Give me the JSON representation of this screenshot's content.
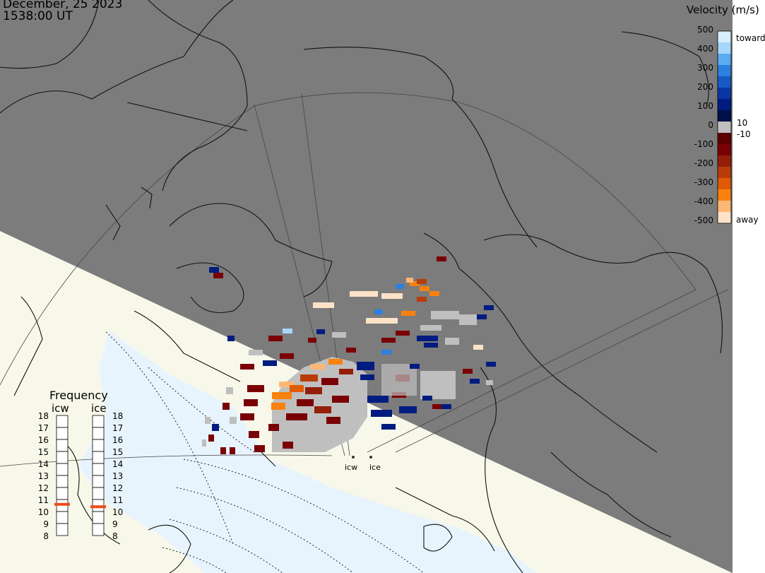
{
  "header": {
    "date": "December, 25 2023",
    "time": "1538:00 UT"
  },
  "legend": {
    "title": "Velocity (m/s)",
    "tick_labels": [
      "500",
      "400",
      "300",
      "200",
      "100",
      "0",
      "-100",
      "-200",
      "-300",
      "-400",
      "-500"
    ],
    "threshold_labels": [
      "10",
      "-10"
    ],
    "end_labels": {
      "toward": "toward",
      "away": "away"
    },
    "colors": [
      "#fde2c7",
      "#fdb774",
      "#f9810e",
      "#e05a06",
      "#b83c0a",
      "#951e0b",
      "#7a0005",
      "#5c0000",
      "#bfbfbf",
      "#000f4a",
      "#001c80",
      "#0a36a6",
      "#1859c5",
      "#2d7fe0",
      "#5aabf0",
      "#a6d6fa",
      "#d7eefe"
    ]
  },
  "frequency": {
    "title": "Frequency",
    "radars": [
      {
        "name": "icw",
        "value_mhz": 10.6
      },
      {
        "name": "ice",
        "value_mhz": 10.4
      }
    ],
    "scale_labels": [
      "18",
      "17",
      "16",
      "15",
      "14",
      "13",
      "12",
      "11",
      "10",
      "9",
      "8"
    ],
    "marker_color": "#ee4c1c"
  },
  "sites": [
    {
      "name": "icw"
    },
    {
      "name": "ice"
    }
  ],
  "colors": {
    "night": "#7c7c7c",
    "day_land": "#f8f8ea",
    "day_ocean": "#e8f4fd",
    "coast": "#111111",
    "grid": "#3c3c3c"
  }
}
